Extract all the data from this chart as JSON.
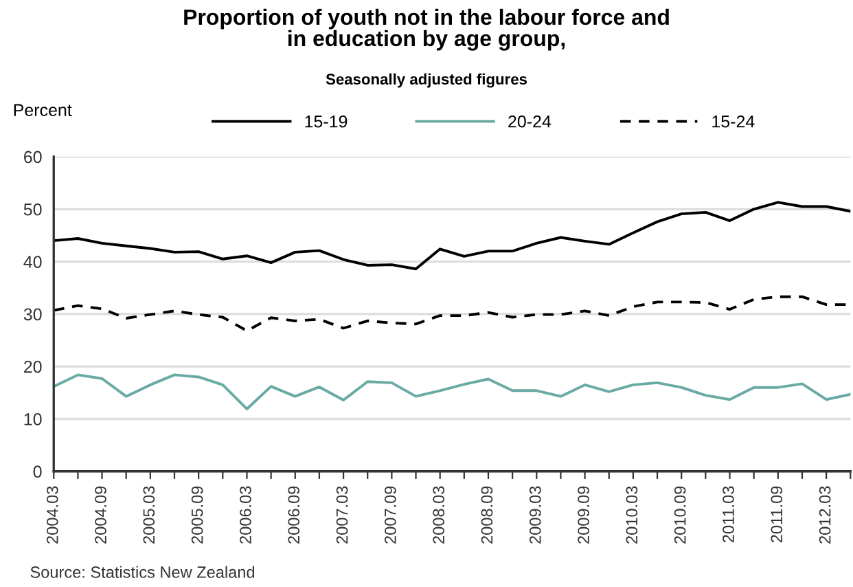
{
  "chart_data": {
    "type": "line",
    "title": "Proportion of youth not in the labour force and\nin education by age group,",
    "subtitle": "Seasonally adjusted figures",
    "ylabel": "Percent",
    "categories": [
      "2004.03",
      null,
      "2004.09",
      null,
      "2005.03",
      null,
      "2005.09",
      null,
      "2006.03",
      null,
      "2006.09",
      null,
      "2007.03",
      null,
      "2007.09",
      null,
      "2008.03",
      null,
      "2008.09",
      null,
      "2009.03",
      null,
      "2009.09",
      null,
      "2010.03",
      null,
      "2010.09",
      null,
      "2011.03",
      null,
      "2011.09",
      null,
      "2012.03",
      null
    ],
    "series": [
      {
        "name": "15-19",
        "color": "#000000",
        "line_style": "solid",
        "values": [
          44.0,
          44.4,
          43.5,
          43.0,
          42.5,
          41.8,
          41.9,
          40.5,
          41.1,
          39.8,
          41.8,
          42.1,
          40.4,
          39.3,
          39.4,
          38.6,
          42.4,
          41.0,
          42.0,
          42.0,
          43.5,
          44.6,
          43.9,
          43.3,
          45.5,
          47.6,
          49.1,
          49.4,
          47.8,
          50.0,
          51.3,
          50.5,
          50.5,
          49.6
        ]
      },
      {
        "name": "20-24",
        "color": "#6aaaa5",
        "line_style": "solid",
        "values": [
          16.2,
          18.4,
          17.7,
          14.3,
          16.5,
          18.4,
          18.0,
          16.5,
          11.9,
          16.2,
          14.3,
          16.1,
          13.6,
          17.1,
          16.9,
          14.3,
          15.4,
          16.6,
          17.6,
          15.4,
          15.4,
          14.3,
          16.5,
          15.2,
          16.5,
          16.9,
          16.0,
          14.5,
          13.7,
          16.0,
          16.0,
          16.7,
          13.7,
          14.7
        ]
      },
      {
        "name": "15-24",
        "color": "#000000",
        "line_style": "dashed",
        "values": [
          30.7,
          31.6,
          31.0,
          29.2,
          29.9,
          30.6,
          29.9,
          29.4,
          26.8,
          29.3,
          28.7,
          29.0,
          27.3,
          28.7,
          28.3,
          28.1,
          29.7,
          29.7,
          30.3,
          29.4,
          29.9,
          29.9,
          30.6,
          29.7,
          31.4,
          32.3,
          32.3,
          32.2,
          30.9,
          32.8,
          33.3,
          33.3,
          31.8,
          31.8
        ]
      }
    ],
    "ylim": [
      0,
      60
    ],
    "yticks": [
      0,
      10,
      20,
      30,
      40,
      50,
      60
    ],
    "grid": "y",
    "legend": "top",
    "marker": "none",
    "annotations": [
      "Source: Statistics New Zealand"
    ]
  }
}
